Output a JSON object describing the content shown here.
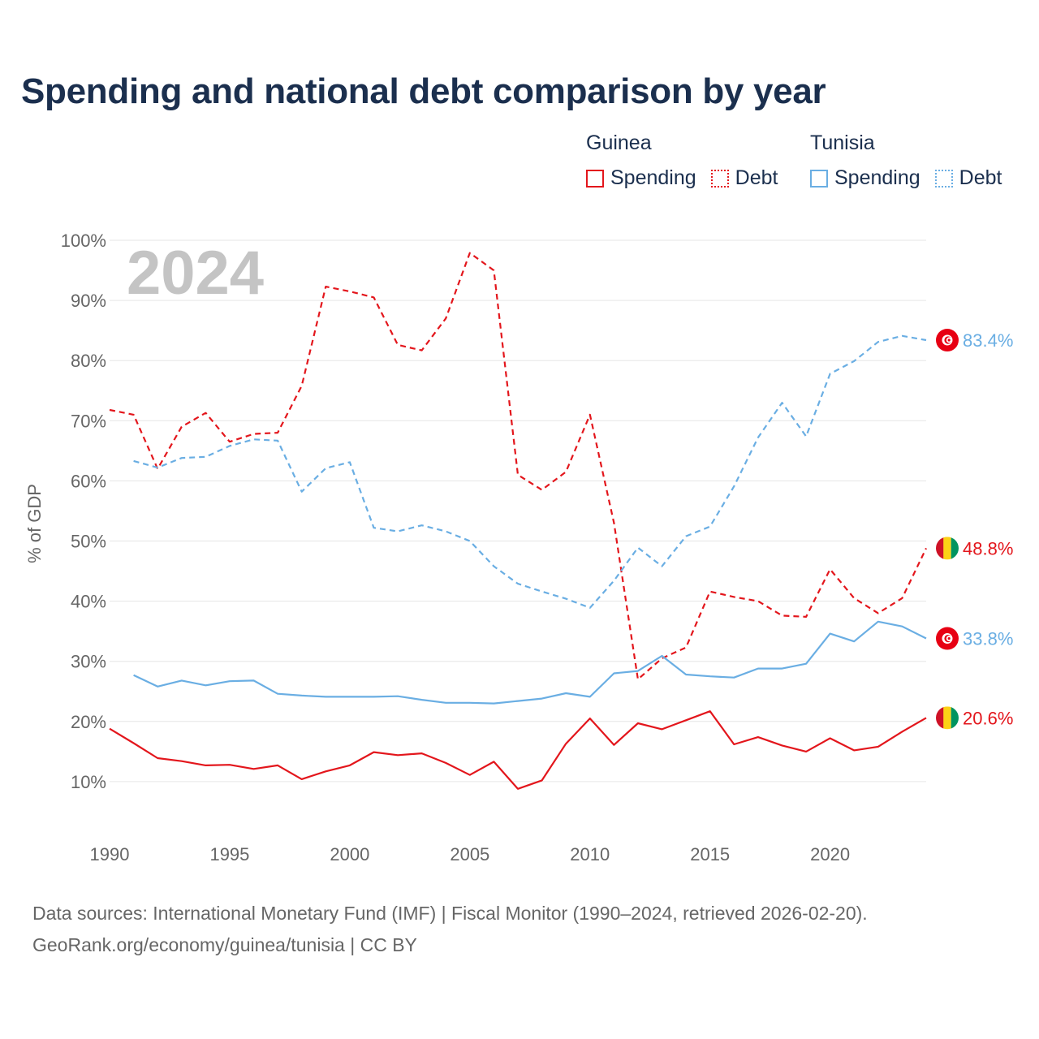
{
  "title": "Spending and national debt comparison by year",
  "legend": {
    "guinea": {
      "name": "Guinea",
      "spending": "Spending",
      "debt": "Debt"
    },
    "tunisia": {
      "name": "Tunisia",
      "spending": "Spending",
      "debt": "Debt"
    }
  },
  "colors": {
    "guinea": "#e3161c",
    "tunisia": "#6aaee3",
    "title": "#1b2f4e",
    "year": "#c4c4c4"
  },
  "footer": {
    "sources": "Data sources: International Monetary Fund (IMF) | Fiscal Monitor (1990–2024, retrieved 2026-02-20).",
    "credit": "GeoRank.org/economy/guinea/tunisia | CC BY"
  },
  "chart_data": {
    "type": "line",
    "year_label": "2024",
    "ylabel": "% of GDP",
    "ylim": [
      0,
      100
    ],
    "xlim": [
      1990,
      2024
    ],
    "yticks": [
      10,
      20,
      30,
      40,
      50,
      60,
      70,
      80,
      90,
      100
    ],
    "ytick_labels": [
      "10%",
      "20%",
      "30%",
      "40%",
      "50%",
      "60%",
      "70%",
      "80%",
      "90%",
      "100%"
    ],
    "xticks": [
      1990,
      1995,
      2000,
      2005,
      2010,
      2015,
      2020
    ],
    "xtick_labels": [
      "1990",
      "1995",
      "2000",
      "2005",
      "2010",
      "2015",
      "2020"
    ],
    "series": [
      {
        "name": "Guinea Debt",
        "country": "guinea",
        "style": "dashed",
        "x": [
          1990,
          1991,
          1992,
          1993,
          1994,
          1995,
          1996,
          1997,
          1998,
          1999,
          2000,
          2001,
          2002,
          2003,
          2004,
          2005,
          2006,
          2007,
          2008,
          2009,
          2010,
          2011,
          2012,
          2013,
          2014,
          2015,
          2016,
          2017,
          2018,
          2019,
          2020,
          2021,
          2022,
          2023,
          2024
        ],
        "values": [
          71.8,
          71.0,
          62.0,
          69.0,
          71.3,
          66.5,
          67.8,
          68.0,
          75.8,
          92.3,
          91.5,
          90.5,
          82.6,
          81.7,
          87.0,
          97.9,
          95.0,
          61.0,
          58.5,
          61.5,
          71.0,
          53.0,
          27.0,
          30.5,
          32.3,
          41.6,
          40.7,
          40.0,
          37.6,
          37.4,
          45.3,
          40.5,
          38.0,
          40.5,
          48.8
        ],
        "end_label": "48.8%"
      },
      {
        "name": "Tunisia Debt",
        "country": "tunisia",
        "style": "dashed",
        "x": [
          1991,
          1992,
          1993,
          1994,
          1995,
          1996,
          1997,
          1998,
          1999,
          2000,
          2001,
          2002,
          2003,
          2004,
          2005,
          2006,
          2007,
          2008,
          2009,
          2010,
          2011,
          2012,
          2013,
          2014,
          2015,
          2016,
          2017,
          2018,
          2019,
          2020,
          2021,
          2022,
          2023,
          2024
        ],
        "values": [
          63.3,
          62.2,
          63.8,
          64.0,
          65.8,
          66.9,
          66.7,
          58.2,
          62.1,
          63.1,
          52.2,
          51.6,
          52.6,
          51.6,
          50.0,
          45.8,
          42.9,
          41.6,
          40.4,
          38.9,
          43.4,
          48.9,
          45.8,
          50.8,
          52.4,
          59.1,
          67.2,
          73.0,
          67.4,
          77.8,
          79.9,
          83.1,
          84.1,
          83.4
        ],
        "end_label": "83.4%"
      },
      {
        "name": "Tunisia Spending",
        "country": "tunisia",
        "style": "solid",
        "x": [
          1991,
          1992,
          1993,
          1994,
          1995,
          1996,
          1997,
          1998,
          1999,
          2000,
          2001,
          2002,
          2003,
          2004,
          2005,
          2006,
          2007,
          2008,
          2009,
          2010,
          2011,
          2012,
          2013,
          2014,
          2015,
          2016,
          2017,
          2018,
          2019,
          2020,
          2021,
          2022,
          2023,
          2024
        ],
        "values": [
          27.7,
          25.8,
          26.8,
          26.0,
          26.7,
          26.8,
          24.6,
          24.3,
          24.1,
          24.1,
          24.1,
          24.2,
          23.6,
          23.1,
          23.1,
          23.0,
          23.4,
          23.8,
          24.7,
          24.1,
          28.0,
          28.4,
          30.9,
          27.8,
          27.5,
          27.3,
          28.8,
          28.8,
          29.6,
          34.6,
          33.3,
          36.6,
          35.8,
          33.8
        ],
        "end_label": "33.8%"
      },
      {
        "name": "Guinea Spending",
        "country": "guinea",
        "style": "solid",
        "x": [
          1990,
          1991,
          1992,
          1993,
          1994,
          1995,
          1996,
          1997,
          1998,
          1999,
          2000,
          2001,
          2002,
          2003,
          2004,
          2005,
          2006,
          2007,
          2008,
          2009,
          2010,
          2011,
          2012,
          2013,
          2014,
          2015,
          2016,
          2017,
          2018,
          2019,
          2020,
          2021,
          2022,
          2023,
          2024
        ],
        "values": [
          18.8,
          16.4,
          13.9,
          13.4,
          12.7,
          12.8,
          12.1,
          12.7,
          10.4,
          11.7,
          12.7,
          14.9,
          14.4,
          14.7,
          13.1,
          11.1,
          13.3,
          8.8,
          10.2,
          16.3,
          20.5,
          16.1,
          19.7,
          18.7,
          20.2,
          21.7,
          16.2,
          17.4,
          16.0,
          15.0,
          17.2,
          15.2,
          15.8,
          18.3,
          20.6
        ],
        "end_label": "20.6%"
      }
    ]
  }
}
